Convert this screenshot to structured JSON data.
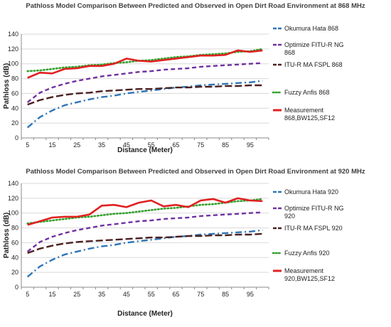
{
  "chart_data": [
    {
      "type": "line",
      "title": "Pathloss Model Comparison Between Predicted and Observed in Open Dirt Road Environment at 868 MHz",
      "xlabel": "Distance (Meter)",
      "ylabel": "Pathloss (dB)",
      "ylim": [
        0,
        140
      ],
      "yticks": [
        "0",
        "20",
        "40",
        "60",
        "80",
        "100",
        "120",
        "140"
      ],
      "x": [
        5,
        10,
        15,
        20,
        25,
        30,
        35,
        40,
        45,
        50,
        55,
        60,
        65,
        70,
        75,
        80,
        85,
        90,
        95,
        100
      ],
      "xtick_labels": [
        "5",
        "15",
        "25",
        "35",
        "45",
        "55",
        "65",
        "75",
        "85",
        "95"
      ],
      "grid": true,
      "legend_position": "right",
      "series": [
        {
          "name": "Okumura Hata 868",
          "color": "#2e75b6",
          "dash": "dashdot",
          "values": [
            14,
            28,
            37,
            44,
            48,
            52,
            55,
            57,
            60,
            62,
            64,
            66,
            68,
            69,
            71,
            72,
            73,
            74,
            75,
            77
          ]
        },
        {
          "name": "Optimize FITU-R NG 868",
          "color": "#7030a0",
          "dash": "dashed",
          "values": [
            48,
            61,
            68,
            73,
            77,
            80,
            83,
            85,
            87,
            89,
            90,
            92,
            93,
            94,
            96,
            97,
            98,
            99,
            100,
            101
          ]
        },
        {
          "name": "ITU-R MA FSPL 868",
          "color": "#4a1f1f",
          "dash": "longdash",
          "values": [
            45,
            51,
            55,
            58,
            60,
            61,
            63,
            64,
            65,
            66,
            66,
            67,
            68,
            68,
            69,
            69,
            70,
            70,
            71,
            71
          ]
        },
        {
          "name": "Fuzzy Anfis 868",
          "color": "#33a02c",
          "dash": "dotted",
          "values": [
            90,
            91,
            93,
            95,
            96,
            98,
            99,
            101,
            102,
            104,
            105,
            107,
            109,
            110,
            112,
            113,
            114,
            116,
            117,
            120
          ]
        },
        {
          "name": "Measurement 868,BW125,SF12",
          "color": "#e02020",
          "dash": "solid",
          "values": [
            81,
            88,
            87,
            93,
            94,
            97,
            97,
            100,
            107,
            104,
            103,
            105,
            107,
            109,
            111,
            111,
            112,
            118,
            116,
            118
          ]
        }
      ]
    },
    {
      "type": "line",
      "title": "Pathloss Model Comparison Between Predicted and Observed in Open Dirt Road Environment at 920 MHz",
      "xlabel": "Distance (Meter)",
      "ylabel": "Pathloss (dB)",
      "ylim": [
        0,
        140
      ],
      "yticks": [
        "0",
        "20",
        "40",
        "60",
        "80",
        "100",
        "120",
        "140"
      ],
      "x": [
        5,
        10,
        15,
        20,
        25,
        30,
        35,
        40,
        45,
        50,
        55,
        60,
        65,
        70,
        75,
        80,
        85,
        90,
        95,
        100
      ],
      "xtick_labels": [
        "5",
        "15",
        "25",
        "35",
        "45",
        "55",
        "65",
        "75",
        "85",
        "95"
      ],
      "grid": true,
      "legend_position": "right",
      "series": [
        {
          "name": "Okumura Hata 920",
          "color": "#2e75b6",
          "dash": "dashdot",
          "values": [
            14,
            28,
            37,
            44,
            48,
            52,
            55,
            57,
            60,
            62,
            64,
            66,
            68,
            69,
            71,
            72,
            73,
            74,
            75,
            77
          ]
        },
        {
          "name": "Optimize FITU-R NG 920",
          "color": "#7030a0",
          "dash": "dashed",
          "values": [
            48,
            61,
            68,
            73,
            77,
            80,
            83,
            85,
            87,
            89,
            90,
            92,
            93,
            94,
            96,
            97,
            98,
            99,
            100,
            101
          ]
        },
        {
          "name": "ITU-R MA FSPL 920",
          "color": "#4a1f1f",
          "dash": "longdash",
          "values": [
            46,
            52,
            56,
            59,
            61,
            62,
            63,
            64,
            65,
            66,
            67,
            67,
            68,
            69,
            69,
            70,
            70,
            71,
            71,
            72
          ]
        },
        {
          "name": "Fuzzy Anfis 920",
          "color": "#33a02c",
          "dash": "dotted",
          "values": [
            86,
            88,
            90,
            92,
            94,
            95,
            97,
            99,
            100,
            102,
            104,
            106,
            107,
            109,
            111,
            112,
            114,
            116,
            117,
            119
          ]
        },
        {
          "name": "Measurement 920,BW125,SF12",
          "color": "#e02020",
          "dash": "solid",
          "values": [
            84,
            89,
            94,
            95,
            95,
            98,
            110,
            111,
            108,
            114,
            117,
            109,
            111,
            108,
            117,
            119,
            114,
            120,
            117,
            116
          ]
        }
      ]
    }
  ]
}
